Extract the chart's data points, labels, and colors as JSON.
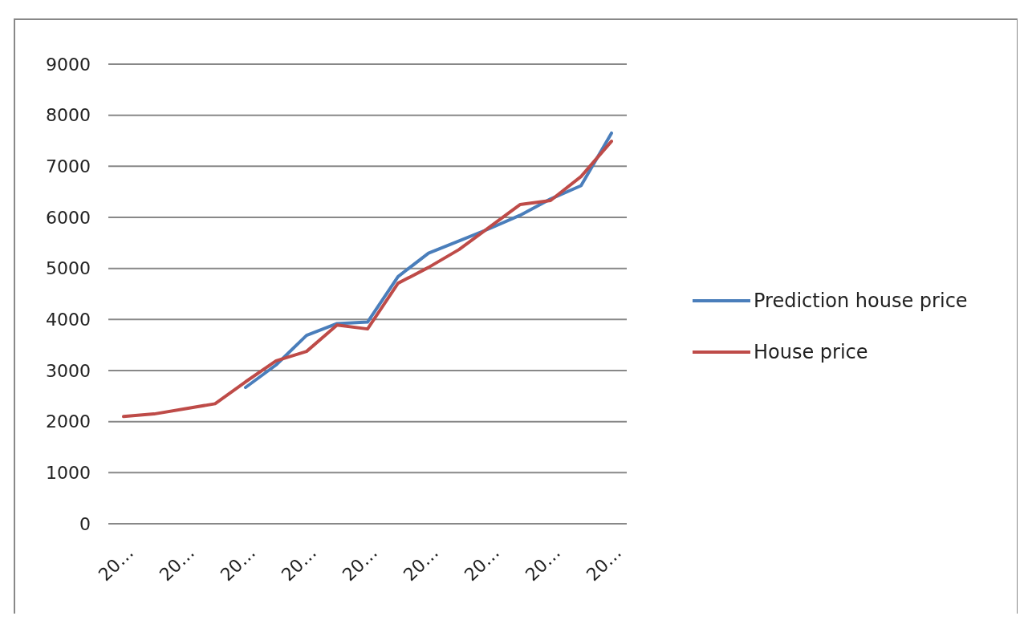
{
  "chart_data": {
    "type": "line",
    "categories": [
      "20…",
      null,
      "20…",
      null,
      "20…",
      null,
      "20…",
      null,
      "20…",
      null,
      "20…",
      null,
      "20…",
      null,
      "20…",
      null,
      "20…"
    ],
    "series": [
      {
        "name": "Prediction house price",
        "color": "#4a7ebb",
        "values": [
          null,
          null,
          null,
          null,
          2670,
          3110,
          3690,
          3920,
          3950,
          4840,
          5300,
          5540,
          5780,
          6040,
          6360,
          6620,
          7650
        ]
      },
      {
        "name": "House price",
        "color": "#be4b48",
        "values": [
          2100,
          2150,
          2250,
          2350,
          2780,
          3190,
          3375,
          3890,
          3815,
          4710,
          5020,
          5370,
          5810,
          6250,
          6330,
          6800,
          7490
        ]
      }
    ],
    "ylim": [
      0,
      9000
    ],
    "yticks": [
      0,
      1000,
      2000,
      3000,
      4000,
      5000,
      6000,
      7000,
      8000,
      9000
    ],
    "grid": "y",
    "legend": "right",
    "marker": "none",
    "line_style": "solid"
  }
}
